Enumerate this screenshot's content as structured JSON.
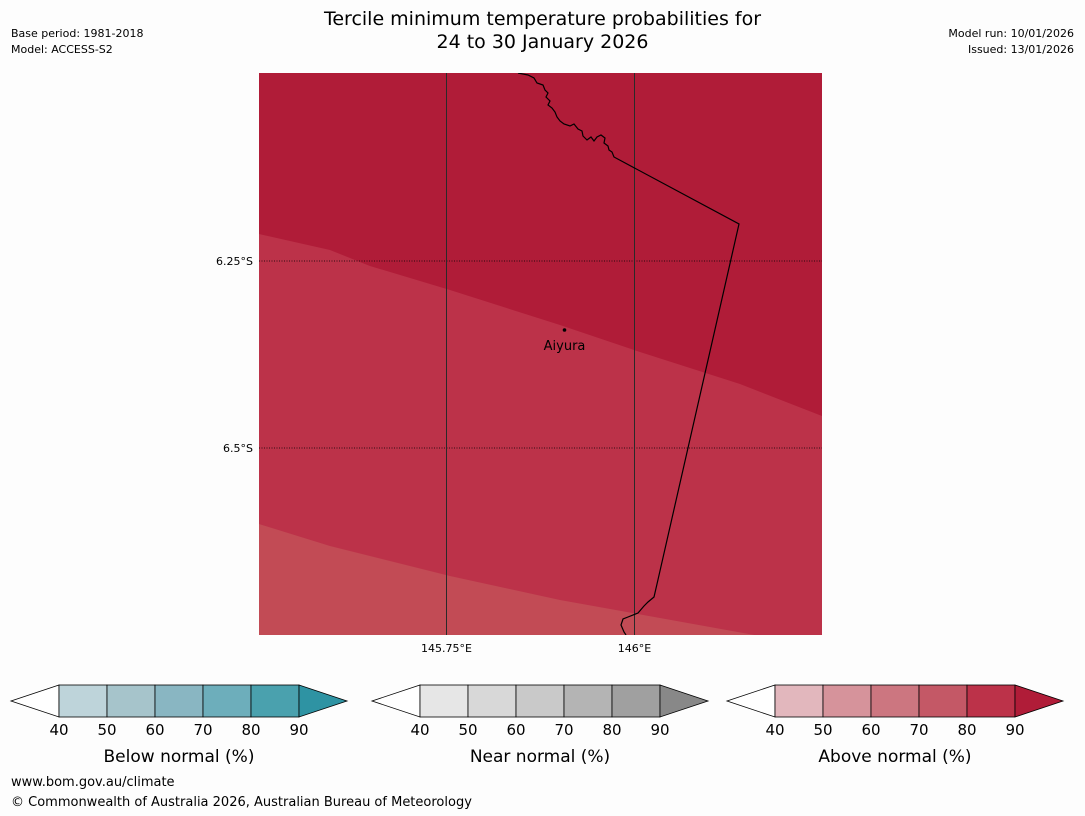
{
  "title": {
    "line1": "Tercile minimum temperature probabilities for",
    "line2": "24 to 30 January 2026"
  },
  "meta": {
    "base_period": "Base period: 1981-2018",
    "model": "Model: ACCESS-S2",
    "model_run": "Model run: 10/01/2026",
    "issued": "Issued: 13/01/2026"
  },
  "map": {
    "lat_labels": [
      "6.25°S",
      "6.5°S"
    ],
    "lon_labels": [
      "145.75°E",
      "146°E"
    ],
    "place": "Aiyura",
    "colors": {
      "band_90": "#b01c38",
      "band_80": "#bc3249",
      "band_70": "#c24b55",
      "border": "#000000"
    }
  },
  "colorbars": [
    {
      "name": "below",
      "label": "Below normal (%)",
      "ticks": [
        "40",
        "50",
        "60",
        "70",
        "80",
        "90"
      ],
      "colors": [
        "#ffffff",
        "#bed4da",
        "#a6c4cb",
        "#89b6c2",
        "#6daebb",
        "#4aa1ae",
        "#2e93a3"
      ]
    },
    {
      "name": "near",
      "label": "Near normal (%)",
      "ticks": [
        "40",
        "50",
        "60",
        "70",
        "80",
        "90"
      ],
      "colors": [
        "#ffffff",
        "#e6e6e6",
        "#d8d8d8",
        "#c9c9c9",
        "#b4b4b4",
        "#a0a0a0",
        "#888888"
      ]
    },
    {
      "name": "above",
      "label": "Above normal (%)",
      "ticks": [
        "40",
        "50",
        "60",
        "70",
        "80",
        "90"
      ],
      "colors": [
        "#ffffff",
        "#e2b7bd",
        "#d6939b",
        "#cc7680",
        "#c45866",
        "#bc3249",
        "#b01c38"
      ]
    }
  ],
  "footer": {
    "url": "www.bom.gov.au/climate",
    "copyright": "© Commonwealth of Australia 2026, Australian Bureau of Meteorology"
  }
}
